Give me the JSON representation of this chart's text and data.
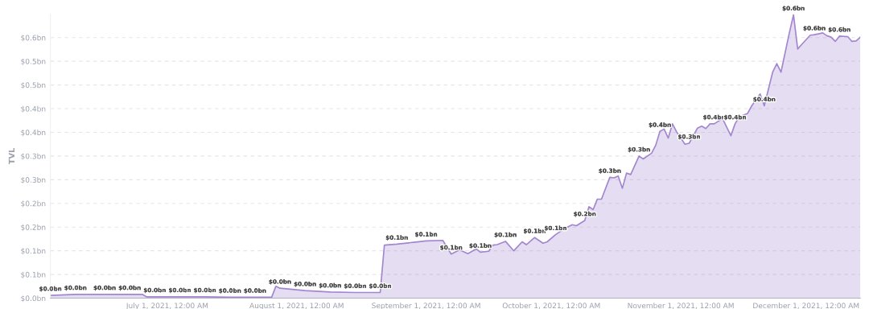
{
  "chart_data": {
    "type": "area",
    "ylabel": "TVL",
    "x": [
      "2021-06-03",
      "2021-06-09",
      "2021-06-16",
      "2021-06-22",
      "2021-06-25",
      "2021-06-26",
      "2021-06-28",
      "2021-07-04",
      "2021-07-10",
      "2021-07-16",
      "2021-07-22",
      "2021-07-26",
      "2021-07-27",
      "2021-07-28",
      "2021-08-03",
      "2021-08-09",
      "2021-08-15",
      "2021-08-21",
      "2021-08-22",
      "2021-08-25",
      "2021-08-29",
      "2021-09-01",
      "2021-09-05",
      "2021-09-07",
      "2021-09-09",
      "2021-09-11",
      "2021-09-13",
      "2021-09-14",
      "2021-09-16",
      "2021-09-17",
      "2021-09-18",
      "2021-09-20",
      "2021-09-22",
      "2021-09-24",
      "2021-09-25",
      "2021-09-27",
      "2021-09-29",
      "2021-09-30",
      "2021-10-02",
      "2021-10-04",
      "2021-10-06",
      "2021-10-07",
      "2021-10-09",
      "2021-10-10",
      "2021-10-11",
      "2021-10-12",
      "2021-10-13",
      "2021-10-15",
      "2021-10-16",
      "2021-10-17",
      "2021-10-18",
      "2021-10-19",
      "2021-10-20",
      "2021-10-22",
      "2021-10-23",
      "2021-10-25",
      "2021-10-26",
      "2021-10-27",
      "2021-10-28",
      "2021-10-29",
      "2021-10-30",
      "2021-10-31",
      "2021-11-02",
      "2021-11-03",
      "2021-11-05",
      "2021-11-06",
      "2021-11-07",
      "2021-11-08",
      "2021-11-09",
      "2021-11-11",
      "2021-11-13",
      "2021-11-14",
      "2021-11-15",
      "2021-11-17",
      "2021-11-18",
      "2021-11-20",
      "2021-11-21",
      "2021-11-23",
      "2021-11-24",
      "2021-11-25",
      "2021-11-27",
      "2021-11-28",
      "2021-11-29",
      "2021-11-30",
      "2021-12-02",
      "2021-12-03",
      "2021-12-05",
      "2021-12-06",
      "2021-12-07",
      "2021-12-08",
      "2021-12-09",
      "2021-12-11",
      "2021-12-12",
      "2021-12-13",
      "2021-12-14"
    ],
    "series": [
      {
        "color": "#a386cf",
        "values": [
          0.006,
          0.008,
          0.008,
          0.008,
          0.008,
          0.003,
          0.003,
          0.003,
          0.003,
          0.002,
          0.002,
          0.002,
          0.025,
          0.021,
          0.016,
          0.013,
          0.012,
          0.012,
          0.112,
          0.114,
          0.118,
          0.121,
          0.122,
          0.093,
          0.102,
          0.094,
          0.104,
          0.097,
          0.099,
          0.112,
          0.113,
          0.12,
          0.1,
          0.119,
          0.113,
          0.128,
          0.116,
          0.119,
          0.134,
          0.146,
          0.155,
          0.153,
          0.164,
          0.193,
          0.187,
          0.209,
          0.209,
          0.255,
          0.254,
          0.258,
          0.232,
          0.264,
          0.261,
          0.3,
          0.294,
          0.306,
          0.323,
          0.352,
          0.357,
          0.338,
          0.368,
          0.351,
          0.325,
          0.327,
          0.359,
          0.363,
          0.358,
          0.368,
          0.368,
          0.379,
          0.343,
          0.368,
          0.383,
          0.39,
          0.406,
          0.431,
          0.406,
          0.477,
          0.495,
          0.477,
          0.56,
          0.598,
          0.526,
          0.536,
          0.555,
          0.556,
          0.56,
          0.554,
          0.551,
          0.542,
          0.553,
          0.552,
          0.542,
          0.543,
          0.551
        ],
        "value_labels": [
          "$0.0bn",
          "$0.0bn",
          "$0.0bn",
          "$0.0bn",
          null,
          null,
          "$0.0bn",
          "$0.0bn",
          "$0.0bn",
          "$0.0bn",
          "$0.0bn",
          null,
          null,
          "$0.0bn",
          "$0.0bn",
          "$0.0bn",
          "$0.0bn",
          "$0.0bn",
          null,
          "$0.1bn",
          null,
          "$0.1bn",
          null,
          "$0.1bn",
          null,
          null,
          null,
          "$0.1bn",
          null,
          null,
          null,
          "$0.1bn",
          null,
          null,
          null,
          "$0.1bn",
          null,
          null,
          "$0.1bn",
          null,
          null,
          null,
          "$0.2bn",
          null,
          null,
          null,
          null,
          "$0.3bn",
          null,
          null,
          null,
          null,
          null,
          "$0.3bn",
          null,
          null,
          null,
          "$0.4bn",
          null,
          null,
          null,
          null,
          null,
          "$0.3bn",
          null,
          null,
          null,
          null,
          "$0.4bn",
          null,
          null,
          "$0.4bn",
          null,
          null,
          null,
          null,
          "$0.4bn",
          null,
          null,
          null,
          null,
          "$0.6bn",
          null,
          null,
          null,
          "$0.6bn",
          null,
          null,
          null,
          null,
          "$0.6bn",
          null,
          null,
          null,
          null
        ]
      }
    ],
    "xlim": [
      "2021-06-03",
      "2021-12-14"
    ],
    "xticks": [
      {
        "value": "2021-07-01",
        "label": "July 1, 2021, 12:00 AM"
      },
      {
        "value": "2021-08-01",
        "label": "August 1, 2021, 12:00 AM"
      },
      {
        "value": "2021-09-01",
        "label": "September 1, 2021, 12:00 AM"
      },
      {
        "value": "2021-10-01",
        "label": "October 1, 2021, 12:00 AM"
      },
      {
        "value": "2021-11-01",
        "label": "November 1, 2021, 12:00 AM"
      },
      {
        "value": "2021-12-01",
        "label": "December 1, 2021, 12:00 AM"
      }
    ],
    "ylim": [
      0,
      0.6
    ],
    "yticks": [
      {
        "value": 0,
        "label": "$0.0bn"
      },
      {
        "value": 0.05,
        "label": "$0.1bn"
      },
      {
        "value": 0.1,
        "label": "$0.1bn"
      },
      {
        "value": 0.15,
        "label": "$0.2bn"
      },
      {
        "value": 0.2,
        "label": "$0.2bn"
      },
      {
        "value": 0.25,
        "label": "$0.3bn"
      },
      {
        "value": 0.3,
        "label": "$0.3bn"
      },
      {
        "value": 0.35,
        "label": "$0.4bn"
      },
      {
        "value": 0.4,
        "label": "$0.4bn"
      },
      {
        "value": 0.45,
        "label": "$0.5bn"
      },
      {
        "value": 0.5,
        "label": "$0.5bn"
      },
      {
        "value": 0.55,
        "label": "$0.6bn"
      }
    ],
    "grid": "y",
    "marker": "none",
    "line_style": "solid"
  }
}
